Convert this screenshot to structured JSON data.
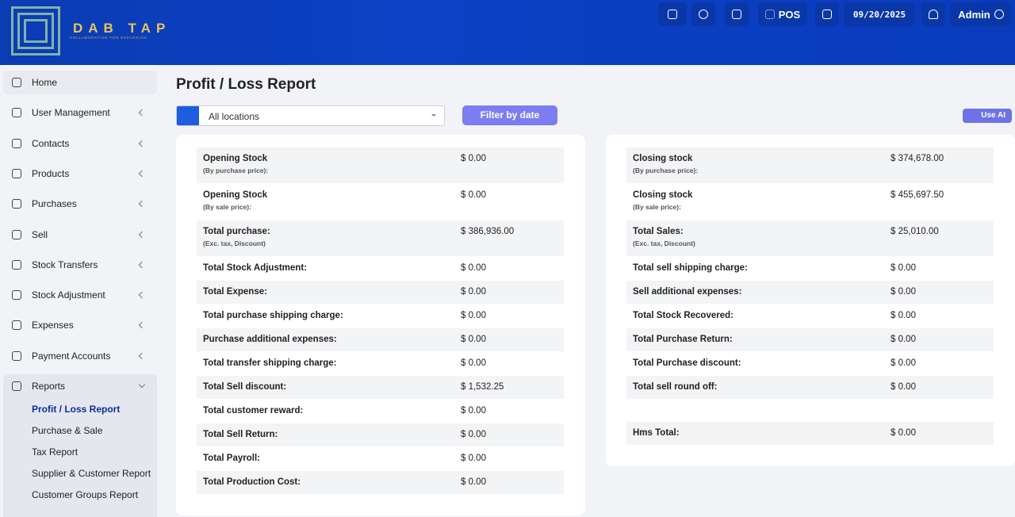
{
  "header": {
    "brand": "DAB TAP",
    "tagline": "COLLABORATION FOR EXPANSION",
    "pos": "POS",
    "date": "09/20/2025",
    "user": "Admin"
  },
  "sidebar": {
    "items": [
      "Home",
      "User Management",
      "Contacts",
      "Products",
      "Purchases",
      "Sell",
      "Stock Transfers",
      "Stock Adjustment",
      "Expenses",
      "Payment Accounts",
      "Reports"
    ],
    "submenu": [
      "Profit / Loss Report",
      "Purchase & Sale",
      "Tax Report",
      "Supplier & Customer Report",
      "Customer Groups Report"
    ]
  },
  "page": {
    "title": "Profit / Loss Report",
    "location": "All locations",
    "filter": "Filter by date",
    "ai": "Use AI"
  },
  "left": {
    "rows": [
      {
        "label": "Opening Stock",
        "note": "(By purchase price):",
        "value": "$ 0.00"
      },
      {
        "label": "Opening Stock",
        "note": "(By sale price):",
        "value": "$ 0.00"
      },
      {
        "label": "Total purchase:",
        "note": "(Exc. tax, Discount)",
        "value": "$ 386,936.00"
      },
      {
        "label": "Total Stock Adjustment:",
        "value": "$ 0.00"
      },
      {
        "label": "Total Expense:",
        "value": "$ 0.00"
      },
      {
        "label": "Total purchase shipping charge:",
        "value": "$ 0.00"
      },
      {
        "label": "Purchase additional expenses:",
        "value": "$ 0.00"
      },
      {
        "label": "Total transfer shipping charge:",
        "value": "$ 0.00"
      },
      {
        "label": "Total Sell discount:",
        "value": "$ 1,532.25"
      },
      {
        "label": "Total customer reward:",
        "value": "$ 0.00"
      },
      {
        "label": "Total Sell Return:",
        "value": "$ 0.00"
      },
      {
        "label": "Total Payroll:",
        "value": "$ 0.00"
      },
      {
        "label": "Total Production Cost:",
        "value": "$ 0.00"
      }
    ]
  },
  "right": {
    "rows": [
      {
        "label": "Closing stock",
        "note": "(By purchase price):",
        "value": "$ 374,678.00"
      },
      {
        "label": "Closing stock",
        "note": "(By sale price):",
        "value": "$ 455,697.50"
      },
      {
        "label": "Total Sales:",
        "note": "(Exc. tax, Discount)",
        "value": "$ 25,010.00"
      },
      {
        "label": "Total sell shipping charge:",
        "value": "$ 0.00"
      },
      {
        "label": "Sell additional expenses:",
        "value": "$ 0.00"
      },
      {
        "label": "Total Stock Recovered:",
        "value": "$ 0.00"
      },
      {
        "label": "Total Purchase Return:",
        "value": "$ 0.00"
      },
      {
        "label": "Total Purchase discount:",
        "value": "$ 0.00"
      },
      {
        "label": "Total sell round off:",
        "value": "$ 0.00"
      }
    ],
    "total": {
      "label": "Hms Total:",
      "value": "$ 0.00"
    }
  }
}
